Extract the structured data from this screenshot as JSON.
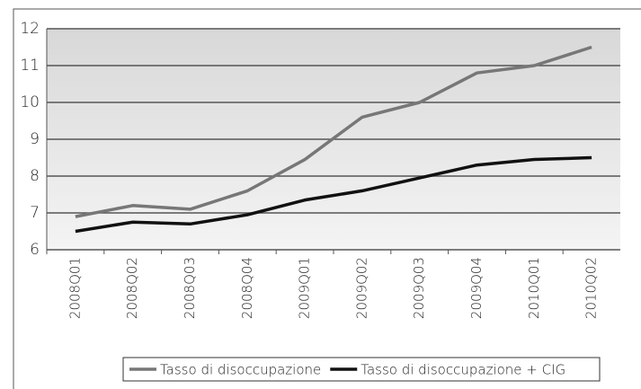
{
  "chart_data": {
    "type": "line",
    "categories": [
      "2008Q01",
      "2008Q02",
      "2008Q03",
      "2008Q04",
      "2009Q01",
      "2009Q02",
      "2009Q03",
      "2009Q04",
      "2010Q01",
      "2010Q02"
    ],
    "series": [
      {
        "name": "Tasso di disoccupazione",
        "color": "#777777",
        "values": [
          6.9,
          7.2,
          7.1,
          7.6,
          8.45,
          9.6,
          10.0,
          10.8,
          11.0,
          11.5
        ]
      },
      {
        "name": "Tasso di disoccupazione + CIG",
        "color": "#111111",
        "values": [
          6.5,
          6.75,
          6.7,
          6.95,
          7.35,
          7.6,
          7.95,
          8.3,
          8.45,
          8.5
        ]
      }
    ],
    "ylim": [
      6,
      12
    ],
    "yticks": [
      6,
      7,
      8,
      9,
      10,
      11,
      12
    ],
    "grid": true,
    "legend": "bottom"
  }
}
